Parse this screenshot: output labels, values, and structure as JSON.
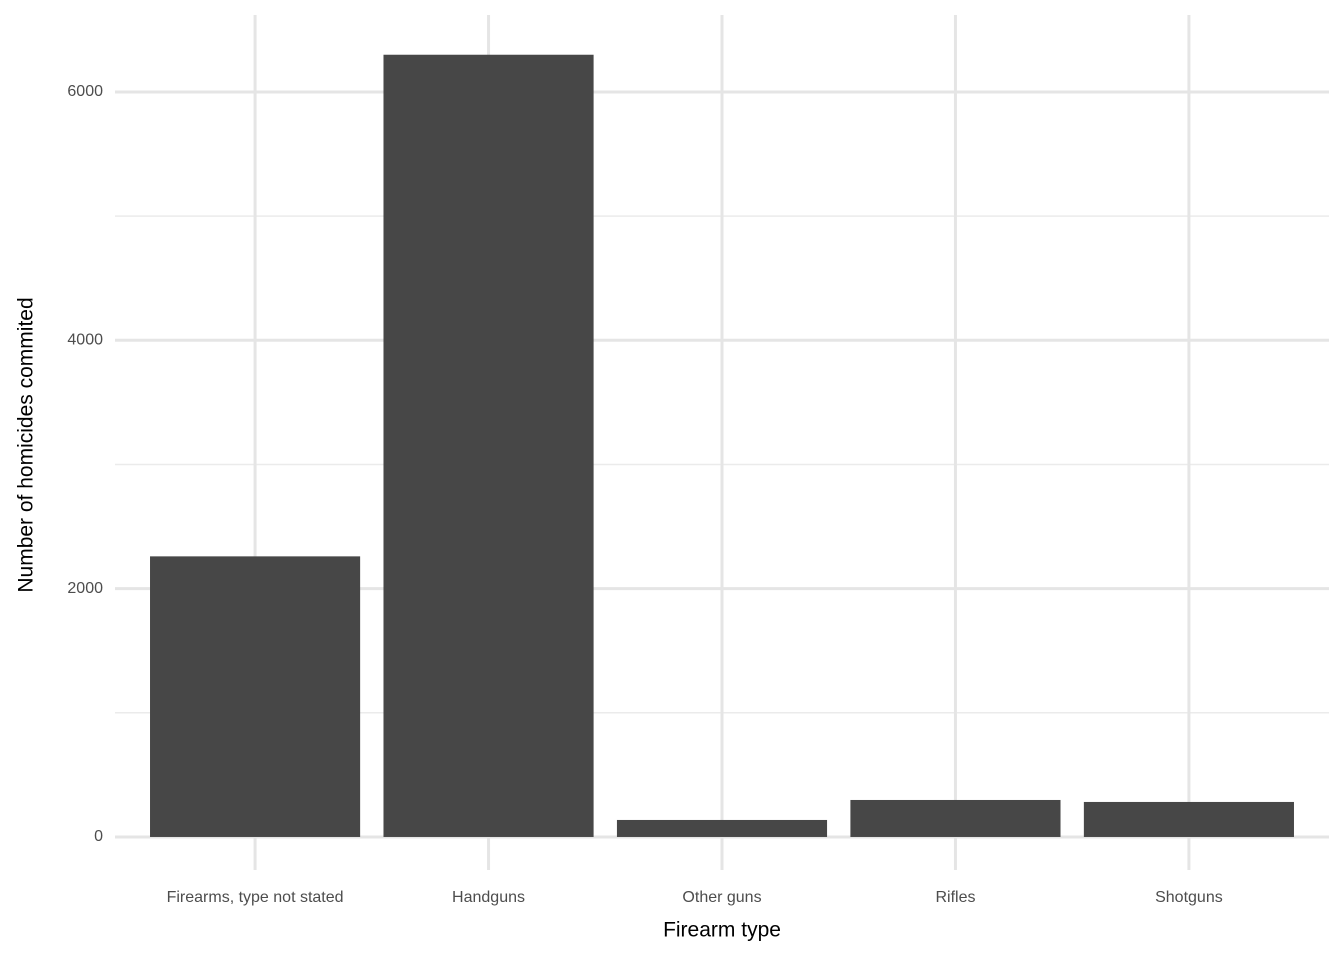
{
  "chart_data": {
    "type": "bar",
    "x_label": "Firearm type",
    "y_label": "Number of homicides commited",
    "categories": [
      "Firearms, type not stated",
      "Handguns",
      "Other guns",
      "Rifles",
      "Shotguns"
    ],
    "values": [
      2260,
      6300,
      137,
      298,
      282
    ],
    "color": "#474747",
    "ylim": [
      -266,
      6620
    ],
    "yticks": [
      0,
      2000,
      4000,
      6000
    ],
    "minor_yticks": [
      1000,
      3000,
      5000
    ],
    "grid": true
  }
}
